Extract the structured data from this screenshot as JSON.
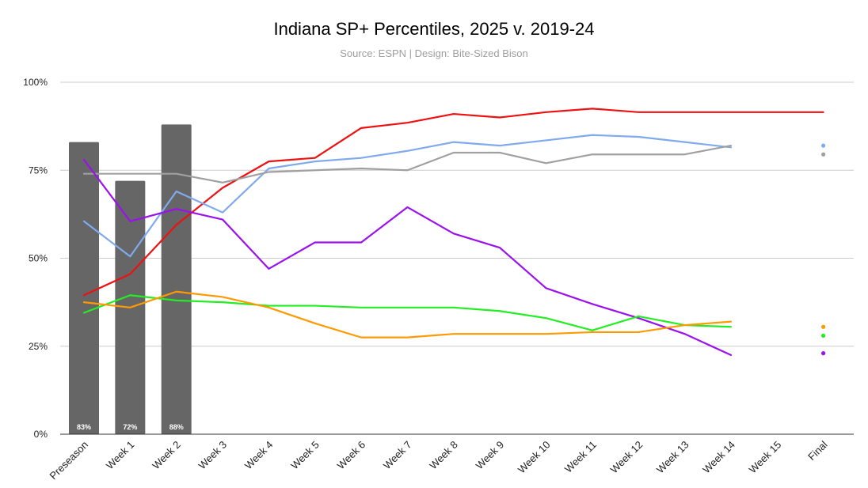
{
  "chart_data": {
    "type": "line",
    "title": "Indiana SP+ Percentiles, 2025 v. 2019-24",
    "subtitle": "Source: ESPN | Design: Bite-Sized Bison",
    "xlabel": "",
    "ylabel": "",
    "ylim": [
      0,
      100
    ],
    "y_ticks": [
      "0%",
      "25%",
      "50%",
      "75%",
      "100%"
    ],
    "y_tick_values": [
      0,
      25,
      50,
      75,
      100
    ],
    "categories": [
      "Preseason",
      "Week 1",
      "Week 2",
      "Week 3",
      "Week 4",
      "Week 5",
      "Week 6",
      "Week 7",
      "Week 8",
      "Week 9",
      "Week 10",
      "Week 11",
      "Week 12",
      "Week 13",
      "Week 14",
      "Week 15",
      "Final"
    ],
    "bars": {
      "name": "2025",
      "color": "#666666",
      "values": [
        83,
        72,
        88
      ],
      "labels": [
        "83%",
        "72%",
        "88%"
      ]
    },
    "series": [
      {
        "name": "red",
        "color": "#ee1111",
        "values": [
          39.5,
          45.5,
          59.5,
          70,
          77.5,
          78.5,
          87,
          88.5,
          91,
          90,
          91.5,
          92.5,
          91.5,
          91.5,
          91.5,
          91.5,
          91.5
        ]
      },
      {
        "name": "blue",
        "color": "#7faaee",
        "values": [
          60.5,
          50.5,
          69,
          63,
          75.5,
          77.5,
          78.5,
          80.5,
          83,
          82,
          83.5,
          85,
          84.5,
          83,
          81.5,
          null,
          82
        ]
      },
      {
        "name": "gray",
        "color": "#a0a0a0",
        "values": [
          74,
          74,
          74,
          71.5,
          74.5,
          75,
          75.5,
          75,
          80,
          80,
          77,
          79.5,
          79.5,
          79.5,
          82,
          null,
          79.5
        ]
      },
      {
        "name": "purple",
        "color": "#9b11ee",
        "values": [
          78,
          60.5,
          64,
          61,
          47,
          54.5,
          54.5,
          64.5,
          57,
          53,
          41.5,
          37,
          33,
          28.5,
          22.5,
          null,
          23
        ]
      },
      {
        "name": "green",
        "color": "#22ee22",
        "values": [
          34.5,
          39.5,
          38,
          37.5,
          36.5,
          36.5,
          36,
          36,
          36,
          35,
          33,
          29.5,
          33.5,
          31,
          30.5,
          null,
          28
        ]
      },
      {
        "name": "orange",
        "color": "#ff9900",
        "values": [
          37.5,
          36,
          40.5,
          39,
          36,
          31.5,
          27.5,
          27.5,
          28.5,
          28.5,
          28.5,
          29,
          29,
          31,
          32,
          null,
          30.5
        ]
      }
    ],
    "legend": "none",
    "grid": true
  }
}
